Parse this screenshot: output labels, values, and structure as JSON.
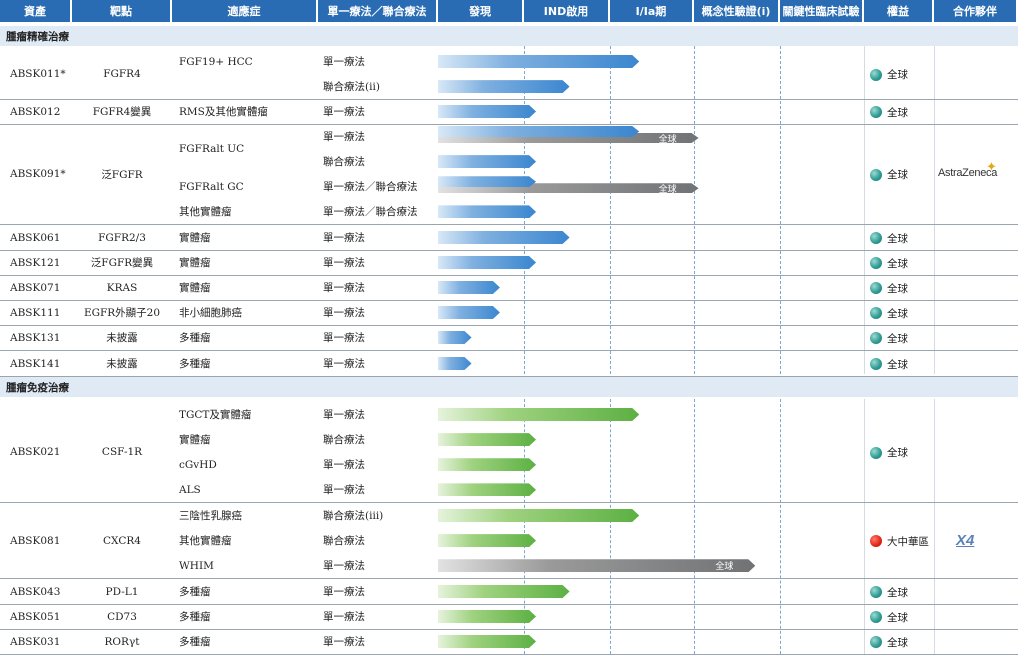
{
  "headers": [
    "資產",
    "靶點",
    "適應症",
    "單一療法／聯合療法",
    "發現",
    "IND啟用",
    "I/Ia期",
    "概念性驗證(i)",
    "關鍵性臨床試驗",
    "權益",
    "合作夥伴"
  ],
  "sections": [
    {
      "title": "腫瘤精確治療",
      "color": "blue"
    },
    {
      "title": "腫瘤免疫治療",
      "color": "green"
    }
  ],
  "assets": [
    {
      "name": "ABSK011*",
      "target": "FGFR4",
      "rights": "全球",
      "rights_icon": "globe-icon",
      "partner": "",
      "rows": [
        {
          "indication": "FGF19+ HCC",
          "therapy": "單一療法",
          "progress": 0.78
        },
        {
          "indication": "",
          "therapy": "聯合療法(ii)",
          "progress": 0.51
        }
      ]
    },
    {
      "name": "ABSK012",
      "target": "FGFR4變異",
      "rights": "全球",
      "rights_icon": "globe-icon",
      "partner": "",
      "rows": [
        {
          "indication": "RMS及其他實體瘤",
          "therapy": "單一療法",
          "progress": 0.38
        }
      ]
    },
    {
      "name": "ABSK091*",
      "target": "泛FGFR",
      "rights": "全球",
      "rights_icon": "globe-icon",
      "partner": "AstraZeneca",
      "rows": [
        {
          "indication": "FGFRalt UC",
          "therapy": "單一療法",
          "progress": 0.78,
          "partner_progress": 1.01,
          "partner_label": "全球"
        },
        {
          "indication": "",
          "therapy": "聯合療法",
          "progress": 0.38
        },
        {
          "indication": "FGFRalt GC",
          "therapy": "單一療法／聯合療法",
          "progress": 0.38,
          "partner_progress": 1.01,
          "partner_label": "全球"
        },
        {
          "indication": "其他實體瘤",
          "therapy": "單一療法／聯合療法",
          "progress": 0.38
        }
      ]
    },
    {
      "name": "ABSK061",
      "target": "FGFR2/3",
      "rights": "全球",
      "rights_icon": "globe-icon",
      "partner": "",
      "rows": [
        {
          "indication": "實體瘤",
          "therapy": "單一療法",
          "progress": 0.51
        }
      ]
    },
    {
      "name": "ABSK121",
      "target": "泛FGFR變異",
      "rights": "全球",
      "rights_icon": "globe-icon",
      "partner": "",
      "rows": [
        {
          "indication": "實體瘤",
          "therapy": "單一療法",
          "progress": 0.38
        }
      ]
    },
    {
      "name": "ABSK071",
      "target": "KRAS",
      "rights": "全球",
      "rights_icon": "globe-icon",
      "partner": "",
      "rows": [
        {
          "indication": "實體瘤",
          "therapy": "單一療法",
          "progress": 0.24
        }
      ]
    },
    {
      "name": "ABSK111",
      "target": "EGFR外顯子20",
      "rights": "全球",
      "rights_icon": "globe-icon",
      "partner": "",
      "rows": [
        {
          "indication": "非小細胞肺癌",
          "therapy": "單一療法",
          "progress": 0.24
        }
      ]
    },
    {
      "name": "ABSK131",
      "target": "未披露",
      "rights": "全球",
      "rights_icon": "globe-icon",
      "partner": "",
      "rows": [
        {
          "indication": "多種瘤",
          "therapy": "單一療法",
          "progress": 0.13
        }
      ]
    },
    {
      "name": "ABSK141",
      "target": "未披露",
      "rights": "全球",
      "rights_icon": "globe-icon",
      "partner": "",
      "rows": [
        {
          "indication": "多種瘤",
          "therapy": "單一療法",
          "progress": 0.13
        }
      ]
    },
    {
      "name": "ABSK021",
      "target": "CSF-1R",
      "rights": "全球",
      "rights_icon": "globe-icon",
      "partner": "",
      "rows": [
        {
          "indication": "TGCT及實體瘤",
          "therapy": "單一療法",
          "progress": 0.78
        },
        {
          "indication": "實體瘤",
          "therapy": "聯合療法",
          "progress": 0.38
        },
        {
          "indication": "cGvHD",
          "therapy": "單一療法",
          "progress": 0.38
        },
        {
          "indication": "ALS",
          "therapy": "單一療法",
          "progress": 0.38
        }
      ]
    },
    {
      "name": "ABSK081",
      "target": "CXCR4",
      "rights": "大中華區",
      "rights_icon": "china-flag-icon",
      "partner": "X4",
      "rows": [
        {
          "indication": "三陰性乳腺癌",
          "therapy": "聯合療法(iii)",
          "progress": 0.78
        },
        {
          "indication": "其他實體瘤",
          "therapy": "聯合療法",
          "progress": 0.38
        },
        {
          "indication": "WHIM",
          "therapy": "單一療法",
          "progress": 0,
          "partner_progress": 1.23,
          "partner_label": "全球"
        }
      ]
    },
    {
      "name": "ABSK043",
      "target": "PD-L1",
      "rights": "全球",
      "rights_icon": "globe-icon",
      "partner": "",
      "rows": [
        {
          "indication": "多種瘤",
          "therapy": "單一療法",
          "progress": 0.51
        }
      ]
    },
    {
      "name": "ABSK051",
      "target": "CD73",
      "rights": "全球",
      "rights_icon": "globe-icon",
      "partner": "",
      "rows": [
        {
          "indication": "多種瘤",
          "therapy": "單一療法",
          "progress": 0.38
        }
      ]
    },
    {
      "name": "ABSK031",
      "target": "RORγt",
      "rights": "全球",
      "rights_icon": "globe-icon",
      "partner": "",
      "rows": [
        {
          "indication": "多種瘤",
          "therapy": "單一療法",
          "progress": 0.38
        }
      ]
    }
  ]
}
